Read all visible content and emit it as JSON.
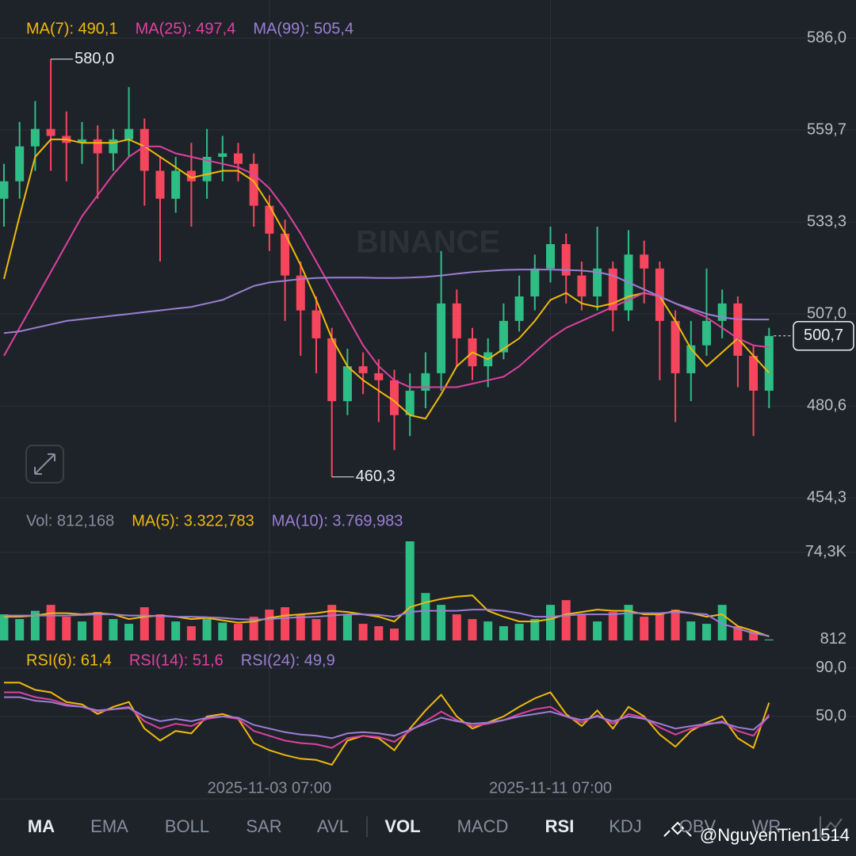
{
  "chart_data": [
    {
      "type": "candlestick",
      "categories": [
        null,
        null,
        null,
        null,
        null,
        null,
        null,
        null,
        null,
        null,
        null,
        null,
        null,
        null,
        null,
        null,
        null,
        "2025-11-03 07:00",
        null,
        null,
        null,
        null,
        null,
        null,
        null,
        null,
        null,
        null,
        null,
        null,
        null,
        null,
        null,
        null,
        null,
        "2025-11-11 07:00",
        null,
        null,
        null,
        null,
        null,
        null,
        null,
        null,
        null,
        null,
        null,
        null,
        null,
        null
      ],
      "open": [
        540,
        545,
        555,
        560,
        558,
        556,
        557,
        553,
        557,
        560,
        548,
        540,
        548,
        545,
        552,
        553,
        550,
        538,
        530,
        518,
        508,
        500,
        482,
        492,
        490,
        488,
        478,
        485,
        490,
        510,
        500,
        492,
        496,
        505,
        512,
        520,
        527,
        518,
        512,
        520,
        508,
        524,
        520,
        505,
        490,
        498,
        505,
        510,
        495,
        485
      ],
      "high": [
        550,
        562,
        568,
        580,
        565,
        562,
        561,
        560,
        572,
        563,
        552,
        552,
        556,
        560,
        558,
        556,
        553,
        541,
        534,
        522,
        512,
        503,
        497,
        496,
        494,
        491,
        490,
        496,
        525,
        514,
        503,
        500,
        510,
        518,
        524,
        532,
        530,
        522,
        532,
        522,
        531,
        528,
        522,
        508,
        505,
        520,
        514,
        512,
        498,
        503
      ],
      "low": [
        532,
        540,
        548,
        548,
        545,
        550,
        540,
        548,
        552,
        538,
        522,
        536,
        532,
        540,
        545,
        545,
        532,
        525,
        505,
        495,
        490,
        460.3,
        478,
        484,
        476,
        468,
        472,
        480,
        485,
        492,
        488,
        486,
        494,
        502,
        508,
        516,
        510,
        508,
        508,
        502,
        505,
        510,
        488,
        476,
        482,
        495,
        500,
        486,
        472,
        480
      ],
      "close": [
        545,
        555,
        560,
        558,
        556,
        557,
        553,
        557,
        560,
        548,
        540,
        548,
        545,
        552,
        553,
        550,
        538,
        530,
        518,
        508,
        500,
        482,
        492,
        490,
        488,
        478,
        485,
        490,
        510,
        500,
        492,
        496,
        505,
        512,
        520,
        527,
        518,
        512,
        520,
        508,
        524,
        520,
        505,
        490,
        498,
        505,
        510,
        495,
        485,
        500.7
      ],
      "up_color": "#2ebd85",
      "down_color": "#f6465d",
      "series": [
        {
          "name": "MA(7): 490,1",
          "color": "#f0b90b",
          "values": [
            517,
            535,
            552,
            557,
            557,
            556,
            556,
            556,
            557,
            555,
            552,
            549,
            546,
            547,
            548,
            548,
            545,
            538,
            530,
            521,
            511,
            500,
            492,
            488,
            485,
            482,
            478,
            477,
            484,
            492,
            496,
            494,
            497,
            500,
            505,
            511,
            513,
            510,
            509,
            510,
            512,
            513,
            512,
            505,
            497,
            492,
            496,
            500,
            495,
            490.1
          ]
        },
        {
          "name": "MA(25): 497,4",
          "color": "#e040a0",
          "values": [
            495,
            503,
            511,
            519,
            527,
            535,
            541,
            547,
            552,
            555,
            555,
            553,
            552,
            551,
            550,
            549,
            547,
            543,
            537,
            530,
            522,
            514,
            506,
            498,
            492,
            488,
            486,
            486,
            486,
            486,
            487,
            488,
            489,
            492,
            496,
            500,
            503,
            505,
            507,
            509,
            511,
            513,
            512,
            510,
            508,
            506,
            503,
            500,
            498,
            497.4
          ]
        },
        {
          "name": "MA(99): 505,4",
          "color": "#9b7fd4",
          "values": [
            501.5,
            502,
            503,
            504,
            505,
            505.5,
            506,
            506.5,
            507,
            507.5,
            508,
            508.5,
            509,
            510,
            511,
            513,
            515,
            516,
            516.5,
            517,
            517.3,
            517.4,
            517.4,
            517.4,
            517.3,
            517.3,
            517.4,
            517.6,
            518,
            518.5,
            519,
            519.3,
            519.6,
            519.7,
            519.7,
            519.7,
            519.6,
            519.4,
            519,
            518,
            516,
            514,
            512,
            510,
            508.5,
            507,
            506,
            505.5,
            505.4,
            505.4
          ]
        }
      ],
      "ylim": [
        451.6,
        592.4
      ],
      "yticks": [
        {
          "value": 586.0,
          "label": "586,0"
        },
        {
          "value": 559.7,
          "label": "559,7"
        },
        {
          "value": 533.3,
          "label": "533,3"
        },
        {
          "value": 507.0,
          "label": "507,0"
        },
        {
          "value": 480.6,
          "label": "480,6"
        },
        {
          "value": 454.3,
          "label": "454,3"
        }
      ],
      "max_label": {
        "value": 580,
        "label": "580,0"
      },
      "min_label": {
        "value": 460.3,
        "label": "460,3"
      },
      "last_price": {
        "value": 500.7,
        "label": "500,7"
      },
      "watermark": "BINANCE"
    },
    {
      "type": "bar",
      "title": "Vol: 812,168",
      "values": [
        22000,
        18000,
        25000,
        30000,
        20000,
        16000,
        24000,
        18000,
        14000,
        28000,
        22000,
        16000,
        12000,
        18000,
        15000,
        14000,
        20000,
        26000,
        28000,
        22000,
        18000,
        30000,
        22000,
        14000,
        12000,
        10000,
        83600,
        40000,
        30000,
        22000,
        18000,
        16000,
        12000,
        14000,
        18000,
        30000,
        34000,
        22000,
        16000,
        24000,
        30000,
        20000,
        22000,
        26000,
        16000,
        14000,
        30000,
        12000,
        8000,
        812
      ],
      "series": [
        {
          "name": "MA(5): 3.322,783",
          "color": "#f0b90b",
          "values": [
            20000,
            20000,
            21000,
            23000,
            23000,
            22000,
            23000,
            22000,
            18000,
            20000,
            21000,
            20000,
            18000,
            19000,
            17000,
            15000,
            16000,
            19000,
            21000,
            22000,
            23000,
            25000,
            24000,
            22000,
            20000,
            16000,
            28000,
            32000,
            35000,
            37000,
            38000,
            25000,
            20000,
            16000,
            16000,
            18000,
            22000,
            24000,
            26000,
            25000,
            25000,
            22000,
            22000,
            25000,
            23000,
            20000,
            22000,
            12000,
            8000,
            3322.783
          ]
        },
        {
          "name": "MA(10): 3.769,983",
          "color": "#9b7fd4",
          "values": [
            21000,
            21000,
            21000,
            21000,
            21000,
            21500,
            22000,
            22000,
            21000,
            21000,
            20500,
            20000,
            20000,
            19500,
            19000,
            18000,
            17500,
            18000,
            19000,
            19500,
            20000,
            21000,
            22000,
            22000,
            21500,
            20000,
            24000,
            25000,
            25000,
            25000,
            26000,
            26000,
            25000,
            23000,
            20000,
            20000,
            21000,
            22000,
            22000,
            22000,
            23000,
            23000,
            23000,
            24000,
            23000,
            22000,
            14000,
            10000,
            6000,
            3769.983
          ]
        }
      ],
      "ylim": [
        0,
        85600
      ],
      "yticks": [
        {
          "value": 74300,
          "label": "74,3K"
        },
        812
      ]
    },
    {
      "type": "line",
      "series": [
        {
          "name": "RSI(6): 61,4",
          "color": "#f0b90b",
          "values": [
            78,
            78,
            72,
            70,
            62,
            60,
            52,
            58,
            62,
            40,
            30,
            38,
            36,
            50,
            52,
            48,
            28,
            22,
            18,
            15,
            14,
            10,
            30,
            34,
            32,
            22,
            40,
            55,
            68,
            50,
            40,
            45,
            50,
            58,
            65,
            70,
            52,
            42,
            55,
            40,
            58,
            50,
            35,
            25,
            38,
            45,
            50,
            32,
            24,
            61.4
          ]
        },
        {
          "name": "RSI(14): 51,6",
          "color": "#e040a0",
          "values": [
            70,
            70,
            66,
            64,
            60,
            58,
            54,
            56,
            58,
            46,
            40,
            44,
            42,
            48,
            50,
            48,
            38,
            34,
            30,
            28,
            27,
            24,
            32,
            34,
            33,
            29,
            38,
            46,
            54,
            47,
            42,
            44,
            47,
            52,
            56,
            58,
            50,
            45,
            51,
            44,
            52,
            49,
            41,
            35,
            40,
            43,
            46,
            38,
            34,
            51.6
          ]
        },
        {
          "name": "RSI(24): 49,9",
          "color": "#9b7fd4",
          "values": [
            66,
            66,
            63,
            62,
            59,
            58,
            55,
            56,
            57,
            50,
            46,
            48,
            46,
            49,
            50,
            49,
            43,
            40,
            37,
            35,
            34,
            32,
            36,
            37,
            36,
            34,
            39,
            44,
            49,
            46,
            44,
            45,
            47,
            50,
            52,
            54,
            50,
            47,
            50,
            46,
            50,
            48,
            44,
            40,
            42,
            44,
            45,
            41,
            39,
            49.9
          ]
        }
      ],
      "ylim": [
        3.4,
        98.5
      ],
      "yticks": [
        {
          "value": 90,
          "label": "90,0"
        },
        {
          "value": 50,
          "label": "50,0"
        }
      ]
    }
  ],
  "toolbar": {
    "items": [
      {
        "label": "MA",
        "active": true
      },
      {
        "label": "EMA",
        "active": false
      },
      {
        "label": "BOLL",
        "active": false
      },
      {
        "label": "SAR",
        "active": false
      },
      {
        "label": "AVL",
        "active": false
      },
      {
        "label": "VOL",
        "active": true
      },
      {
        "label": "MACD",
        "active": false
      },
      {
        "label": "RSI",
        "active": true
      },
      {
        "label": "KDJ",
        "active": false
      },
      {
        "label": "OBV",
        "active": false
      },
      {
        "label": "WR",
        "active": false
      }
    ]
  },
  "watermark": "@NguyenTien1514"
}
